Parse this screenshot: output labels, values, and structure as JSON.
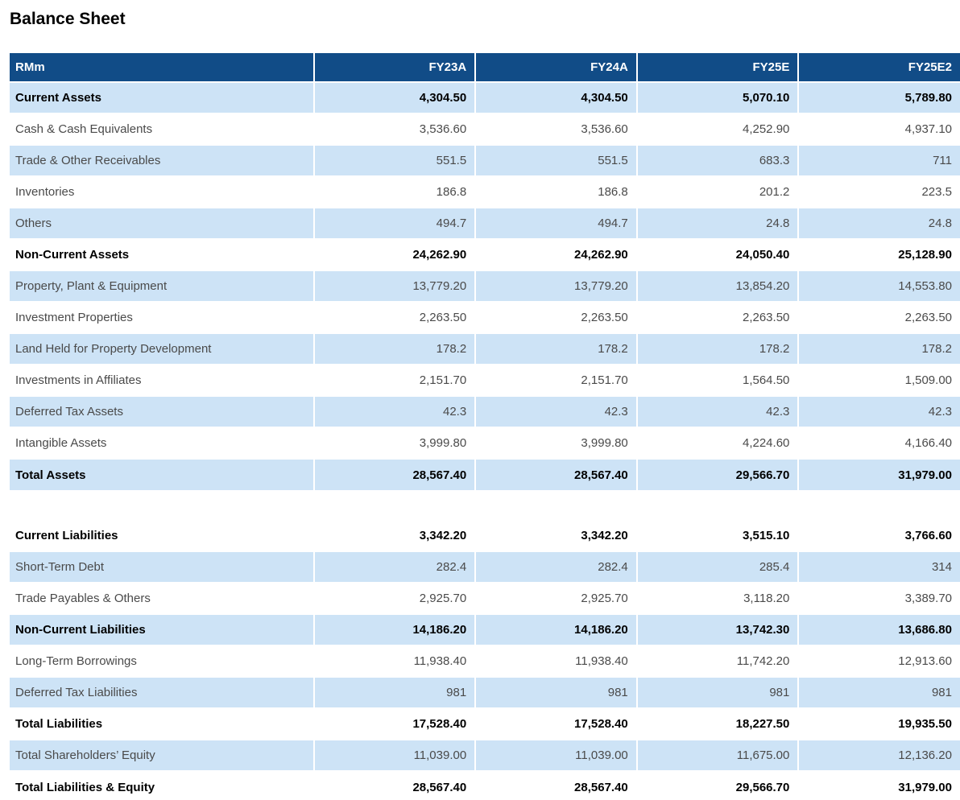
{
  "page_title": "Balance Sheet",
  "table": {
    "unit_label": "RMm",
    "columns": [
      "FY23A",
      "FY24A",
      "FY25E",
      "FY25E2"
    ],
    "sections": [
      {
        "name": "assets",
        "rows": [
          {
            "label": "Current Assets",
            "bold": true,
            "values": [
              "4,304.50",
              "4,304.50",
              "5,070.10",
              "5,789.80"
            ]
          },
          {
            "label": "Cash & Cash Equivalents",
            "bold": false,
            "values": [
              "3,536.60",
              "3,536.60",
              "4,252.90",
              "4,937.10"
            ]
          },
          {
            "label": "Trade & Other Receivables",
            "bold": false,
            "values": [
              "551.5",
              "551.5",
              "683.3",
              "711"
            ]
          },
          {
            "label": "Inventories",
            "bold": false,
            "values": [
              "186.8",
              "186.8",
              "201.2",
              "223.5"
            ]
          },
          {
            "label": "Others",
            "bold": false,
            "values": [
              "494.7",
              "494.7",
              "24.8",
              "24.8"
            ]
          },
          {
            "label": "Non-Current Assets",
            "bold": true,
            "values": [
              "24,262.90",
              "24,262.90",
              "24,050.40",
              "25,128.90"
            ]
          },
          {
            "label": "Property, Plant & Equipment",
            "bold": false,
            "values": [
              "13,779.20",
              "13,779.20",
              "13,854.20",
              "14,553.80"
            ]
          },
          {
            "label": "Investment Properties",
            "bold": false,
            "values": [
              "2,263.50",
              "2,263.50",
              "2,263.50",
              "2,263.50"
            ]
          },
          {
            "label": "Land Held for Property Development",
            "bold": false,
            "values": [
              "178.2",
              "178.2",
              "178.2",
              "178.2"
            ]
          },
          {
            "label": "Investments in Affiliates",
            "bold": false,
            "values": [
              "2,151.70",
              "2,151.70",
              "1,564.50",
              "1,509.00"
            ]
          },
          {
            "label": "Deferred Tax Assets",
            "bold": false,
            "values": [
              "42.3",
              "42.3",
              "42.3",
              "42.3"
            ]
          },
          {
            "label": "Intangible Assets",
            "bold": false,
            "values": [
              "3,999.80",
              "3,999.80",
              "4,224.60",
              "4,166.40"
            ]
          },
          {
            "label": "Total Assets",
            "bold": true,
            "values": [
              "28,567.40",
              "28,567.40",
              "29,566.70",
              "31,979.00"
            ]
          }
        ]
      },
      {
        "name": "liabilities-and-equity",
        "rows": [
          {
            "label": "Current Liabilities",
            "bold": true,
            "values": [
              "3,342.20",
              "3,342.20",
              "3,515.10",
              "3,766.60"
            ]
          },
          {
            "label": "Short-Term Debt",
            "bold": false,
            "values": [
              "282.4",
              "282.4",
              "285.4",
              "314"
            ]
          },
          {
            "label": "Trade Payables & Others",
            "bold": false,
            "values": [
              "2,925.70",
              "2,925.70",
              "3,118.20",
              "3,389.70"
            ]
          },
          {
            "label": "Non-Current Liabilities",
            "bold": true,
            "values": [
              "14,186.20",
              "14,186.20",
              "13,742.30",
              "13,686.80"
            ]
          },
          {
            "label": "Long-Term Borrowings",
            "bold": false,
            "values": [
              "11,938.40",
              "11,938.40",
              "11,742.20",
              "12,913.60"
            ]
          },
          {
            "label": "Deferred Tax Liabilities",
            "bold": false,
            "values": [
              "981",
              "981",
              "981",
              "981"
            ]
          },
          {
            "label": "Total Liabilities",
            "bold": true,
            "values": [
              "17,528.40",
              "17,528.40",
              "18,227.50",
              "19,935.50"
            ]
          },
          {
            "label": "Total Shareholders’ Equity",
            "bold": false,
            "values": [
              "11,039.00",
              "11,039.00",
              "11,675.00",
              "12,136.20"
            ]
          },
          {
            "label": "Total Liabilities & Equity",
            "bold": true,
            "values": [
              "28,567.40",
              "28,567.40",
              "29,566.70",
              "31,979.00"
            ]
          }
        ]
      }
    ]
  },
  "colors": {
    "header_bg": "#114C87",
    "row_shaded_bg": "#CDE3F6",
    "header_text": "#FFFFFF",
    "body_text": "#4A4A4A",
    "bold_text": "#000000"
  }
}
